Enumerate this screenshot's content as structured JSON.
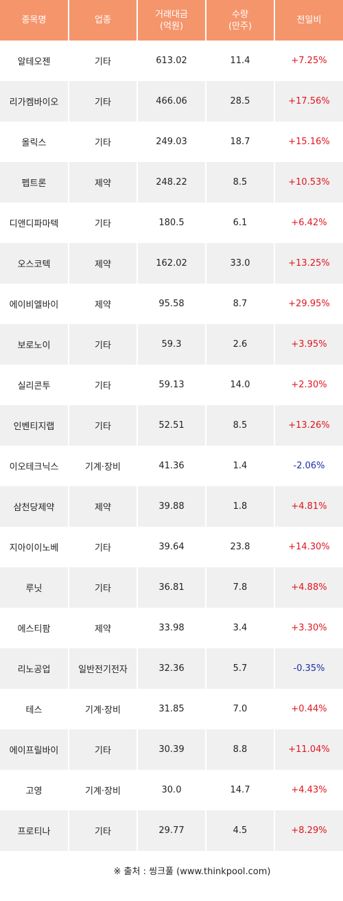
{
  "table": {
    "headers": [
      {
        "lines": [
          "종목명"
        ]
      },
      {
        "lines": [
          "업종"
        ]
      },
      {
        "lines": [
          "거래대금",
          "(억원)"
        ]
      },
      {
        "lines": [
          "수량",
          "(만주)"
        ]
      },
      {
        "lines": [
          "전일비"
        ]
      }
    ],
    "rows": [
      {
        "name": "알테오젠",
        "sector": "기타",
        "amount": "613.02",
        "volume": "11.4",
        "change": "+7.25%",
        "direction": "up"
      },
      {
        "name": "리가켐바이오",
        "sector": "기타",
        "amount": "466.06",
        "volume": "28.5",
        "change": "+17.56%",
        "direction": "up"
      },
      {
        "name": "올릭스",
        "sector": "기타",
        "amount": "249.03",
        "volume": "18.7",
        "change": "+15.16%",
        "direction": "up"
      },
      {
        "name": "펩트론",
        "sector": "제약",
        "amount": "248.22",
        "volume": "8.5",
        "change": "+10.53%",
        "direction": "up"
      },
      {
        "name": "디앤디파마텍",
        "sector": "기타",
        "amount": "180.5",
        "volume": "6.1",
        "change": "+6.42%",
        "direction": "up"
      },
      {
        "name": "오스코텍",
        "sector": "제약",
        "amount": "162.02",
        "volume": "33.0",
        "change": "+13.25%",
        "direction": "up"
      },
      {
        "name": "에이비엘바이",
        "sector": "제약",
        "amount": "95.58",
        "volume": "8.7",
        "change": "+29.95%",
        "direction": "up"
      },
      {
        "name": "보로노이",
        "sector": "기타",
        "amount": "59.3",
        "volume": "2.6",
        "change": "+3.95%",
        "direction": "up"
      },
      {
        "name": "실리콘투",
        "sector": "기타",
        "amount": "59.13",
        "volume": "14.0",
        "change": "+2.30%",
        "direction": "up"
      },
      {
        "name": "인벤티지랩",
        "sector": "기타",
        "amount": "52.51",
        "volume": "8.5",
        "change": "+13.26%",
        "direction": "up"
      },
      {
        "name": "이오테크닉스",
        "sector": "기계·장비",
        "amount": "41.36",
        "volume": "1.4",
        "change": "-2.06%",
        "direction": "down"
      },
      {
        "name": "삼천당제약",
        "sector": "제약",
        "amount": "39.88",
        "volume": "1.8",
        "change": "+4.81%",
        "direction": "up"
      },
      {
        "name": "지아이이노베",
        "sector": "기타",
        "amount": "39.64",
        "volume": "23.8",
        "change": "+14.30%",
        "direction": "up"
      },
      {
        "name": "루닛",
        "sector": "기타",
        "amount": "36.81",
        "volume": "7.8",
        "change": "+4.88%",
        "direction": "up"
      },
      {
        "name": "에스티팜",
        "sector": "제약",
        "amount": "33.98",
        "volume": "3.4",
        "change": "+3.30%",
        "direction": "up"
      },
      {
        "name": "리노공업",
        "sector": "일반전기전자",
        "amount": "32.36",
        "volume": "5.7",
        "change": "-0.35%",
        "direction": "down"
      },
      {
        "name": "테스",
        "sector": "기계·장비",
        "amount": "31.85",
        "volume": "7.0",
        "change": "+0.44%",
        "direction": "up"
      },
      {
        "name": "에이프릴바이",
        "sector": "기타",
        "amount": "30.39",
        "volume": "8.8",
        "change": "+11.04%",
        "direction": "up"
      },
      {
        "name": "고영",
        "sector": "기계·장비",
        "amount": "30.0",
        "volume": "14.7",
        "change": "+4.43%",
        "direction": "up"
      },
      {
        "name": "프로티나",
        "sector": "기타",
        "amount": "29.77",
        "volume": "4.5",
        "change": "+8.29%",
        "direction": "up"
      }
    ]
  },
  "footer": {
    "source": "※ 출처 : 씽크풀 (www.thinkpool.com)"
  },
  "colors": {
    "header_bg": "#f5956c",
    "up": "#e0141e",
    "down": "#1a2ea8",
    "row_alt": "#f0f0f0"
  }
}
